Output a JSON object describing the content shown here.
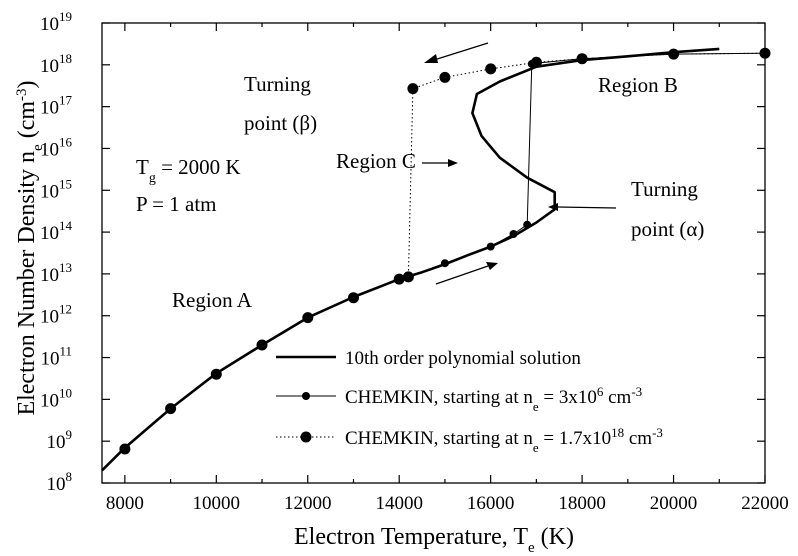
{
  "chart_data": {
    "type": "scatter",
    "xlabel": {
      "main": "Electron Temperature, T",
      "sub": "e",
      "tail": " (K)"
    },
    "ylabel": {
      "main": "Electron Number Density n",
      "sub": "e",
      "unit_open": " (cm",
      "unit_exp": "-3",
      "unit_close": ")"
    },
    "x_ticks": [
      8000,
      10000,
      12000,
      14000,
      16000,
      18000,
      20000,
      22000
    ],
    "y_ticks_exp": [
      8,
      9,
      10,
      11,
      12,
      13,
      14,
      15,
      16,
      17,
      18,
      19
    ],
    "y_tick_base": "10",
    "xlim": [
      7500,
      22000
    ],
    "ylim_log10": [
      8,
      19
    ],
    "y_scale": "log",
    "series": [
      {
        "name": "10th order polynomial solution",
        "style": "solid",
        "points": [
          [
            7500,
            200000000.0
          ],
          [
            8000,
            700000000.0
          ],
          [
            9000,
            6000000000.0
          ],
          [
            10000,
            42000000000.0
          ],
          [
            11000,
            200000000000.0
          ],
          [
            12000,
            900000000000.0
          ],
          [
            13000,
            2800000000000.0
          ],
          [
            14000,
            7500000000000.0
          ],
          [
            14500,
            11000000000000.0
          ],
          [
            15000,
            17000000000000.0
          ],
          [
            15500,
            28000000000000.0
          ],
          [
            16000,
            45000000000000.0
          ],
          [
            16500,
            80000000000000.0
          ],
          [
            17000,
            170000000000000.0
          ],
          [
            17400,
            350000000000000.0
          ],
          [
            17400,
            900000000000000.0
          ],
          [
            16800,
            2000000000000000.0
          ],
          [
            16200,
            6000000000000000.0
          ],
          [
            15800,
            2e+16
          ],
          [
            15600,
            7e+16
          ],
          [
            15700,
            2e+17
          ],
          [
            16200,
            4e+17
          ],
          [
            17000,
            9e+17
          ],
          [
            18000,
            1.3e+18
          ],
          [
            19000,
            1.6e+18
          ],
          [
            20000,
            2e+18
          ],
          [
            21000,
            2.4e+18
          ]
        ]
      },
      {
        "name": "CHEMKIN, starting at n",
        "legend_sub": "e",
        "legend_tail": " = 3x10",
        "legend_exp1": "6",
        "legend_unit": " cm",
        "legend_exp2": "-3",
        "style": "solid-thin-small-marker",
        "points": [
          [
            8000,
            650000000.0
          ],
          [
            9000,
            6000000000.0
          ],
          [
            10000,
            40000000000.0
          ],
          [
            11000,
            200000000000.0
          ],
          [
            12000,
            900000000000.0
          ],
          [
            13000,
            2700000000000.0
          ],
          [
            14000,
            7500000000000.0
          ],
          [
            14200,
            8500000000000.0
          ],
          [
            15000,
            18000000000000.0
          ],
          [
            16000,
            45000000000000.0
          ],
          [
            16500,
            90000000000000.0
          ],
          [
            16800,
            150000000000000.0
          ],
          [
            16900,
            1.05e+18
          ],
          [
            17000,
            1.1e+18
          ],
          [
            18000,
            1.4e+18
          ],
          [
            20000,
            1.8e+18
          ],
          [
            22000,
            1.9e+18
          ]
        ]
      },
      {
        "name": "CHEMKIN, starting at n",
        "legend_sub": "e",
        "legend_tail": " = 1.7x10",
        "legend_exp1": "18",
        "legend_unit": " cm",
        "legend_exp2": "-3",
        "style": "dotted-large-marker",
        "points": [
          [
            22000,
            1.9e+18
          ],
          [
            20000,
            1.8e+18
          ],
          [
            18000,
            1.4e+18
          ],
          [
            17000,
            1.15e+18
          ],
          [
            16000,
            8e+17
          ],
          [
            15000,
            5e+17
          ],
          [
            14300,
            2.7e+17
          ],
          [
            14200,
            8500000000000.0
          ],
          [
            14000,
            7500000000000.0
          ],
          [
            13000,
            2700000000000.0
          ],
          [
            12000,
            900000000000.0
          ],
          [
            11000,
            200000000000.0
          ],
          [
            10000,
            40000000000.0
          ],
          [
            9000,
            6000000000.0
          ],
          [
            8000,
            650000000.0
          ]
        ]
      }
    ],
    "annotations": {
      "turning_beta_l1": "Turning",
      "turning_beta_l2": "point (β)",
      "region_b": "Region B",
      "tg_main": "T",
      "tg_sub": "g",
      "tg_tail": " = 2000 K",
      "pressure": "P = 1 atm",
      "region_c": "Region C",
      "turning_alpha_l1": "Turning",
      "turning_alpha_l2": "point (α)",
      "region_a": "Region A"
    }
  }
}
